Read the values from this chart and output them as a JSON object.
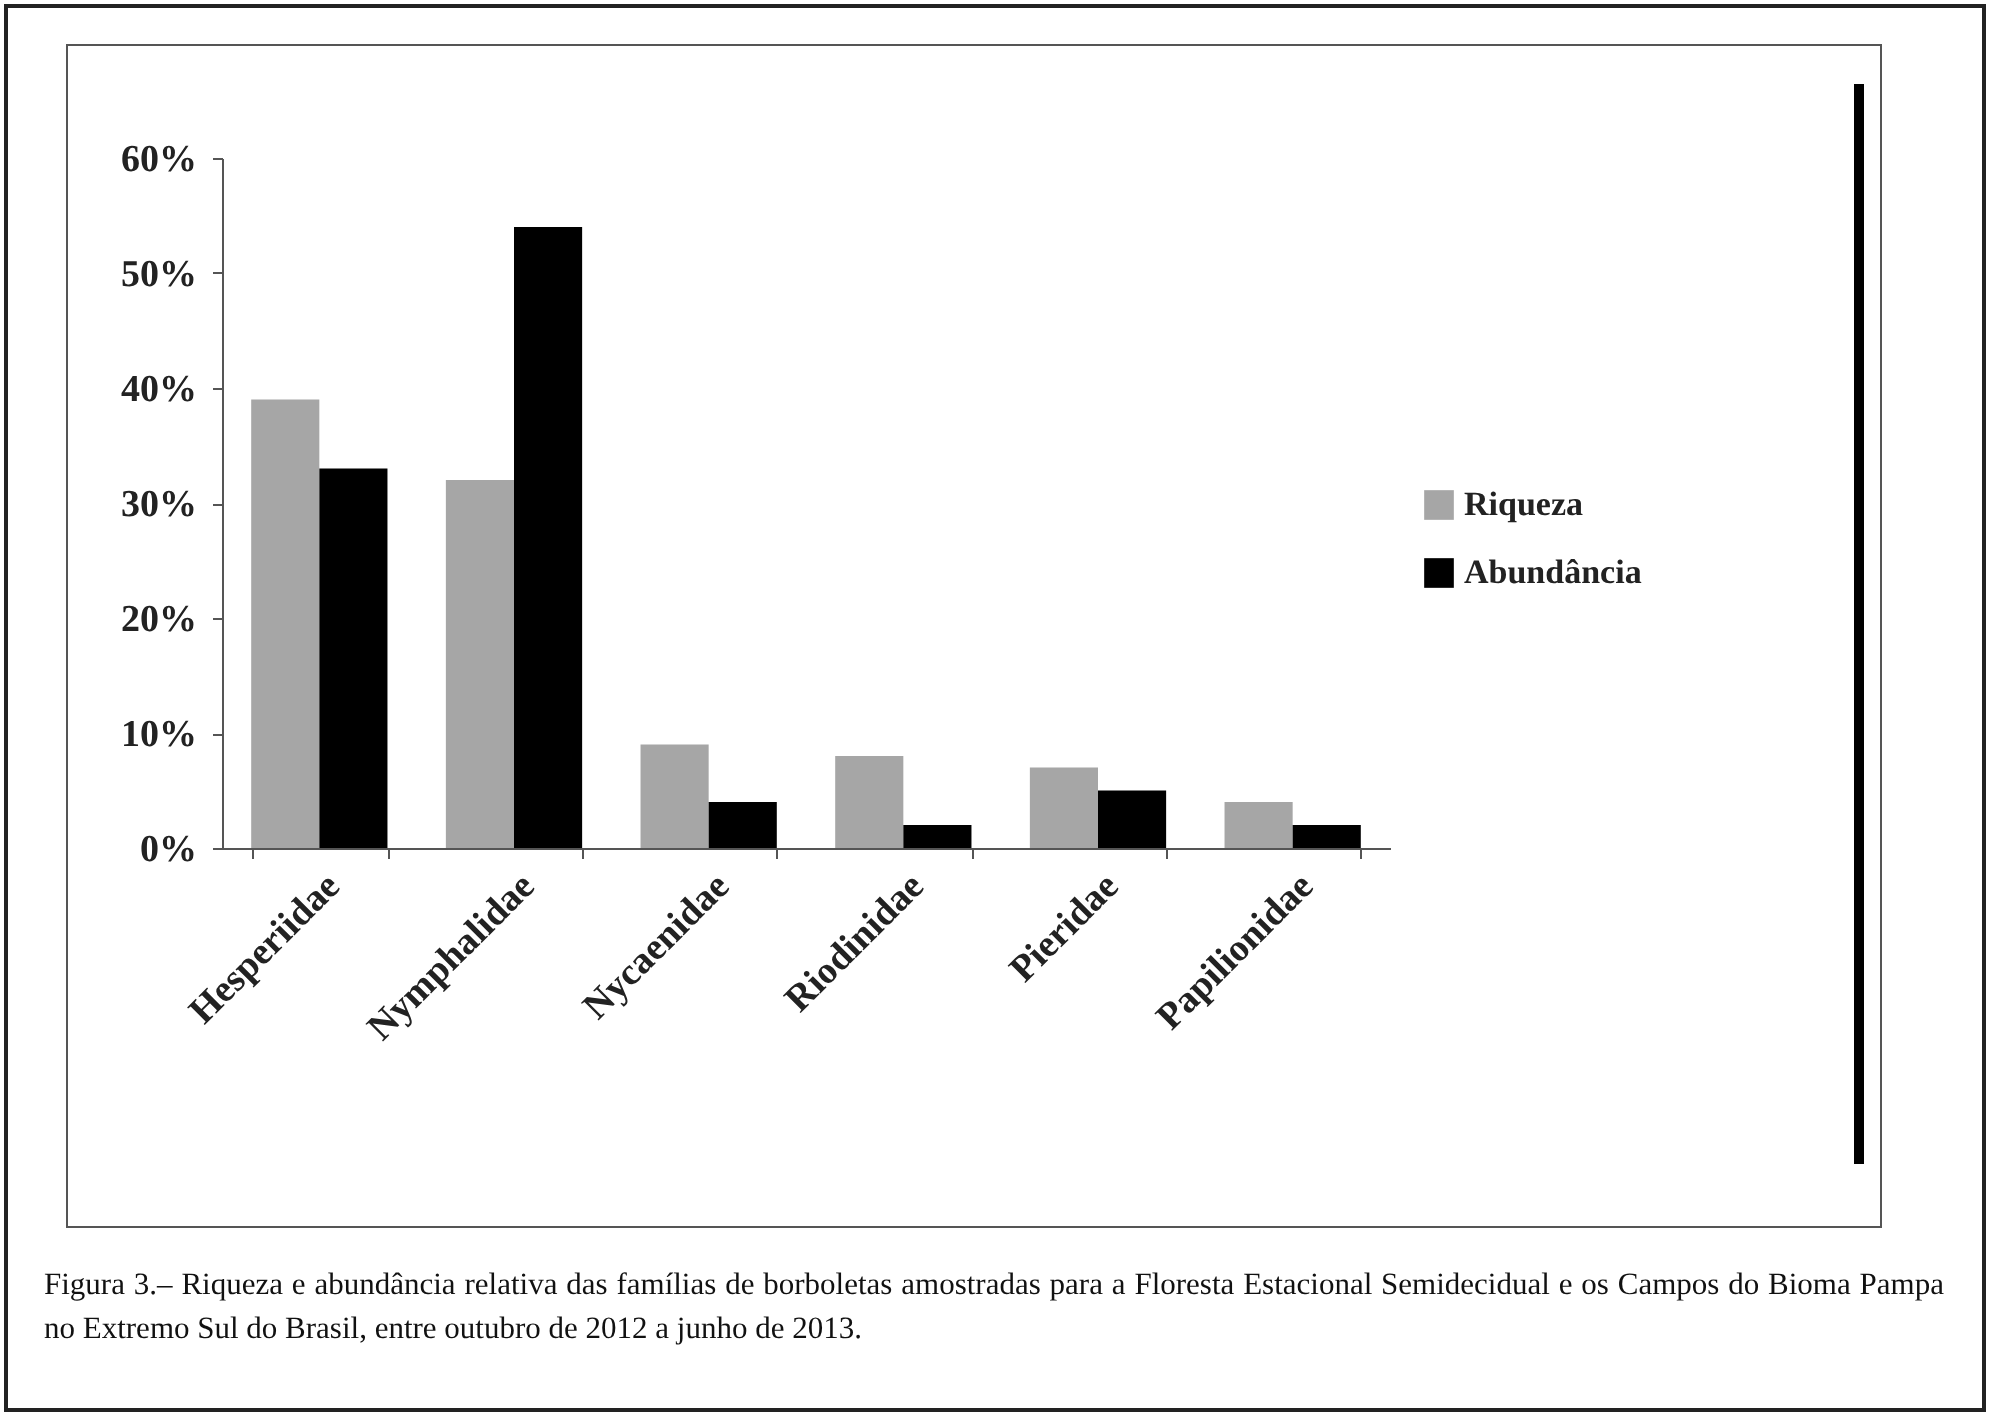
{
  "chart_data": {
    "type": "bar",
    "categories": [
      "Hesperiidae",
      "Nymphalidae",
      "Nycaenidae",
      "Riodinidae",
      "Pieridae",
      "Papilionidae"
    ],
    "series": [
      {
        "name": "Riqueza",
        "color": "#a6a6a6",
        "values": [
          39,
          32,
          9,
          8,
          7,
          4
        ]
      },
      {
        "name": "Abundância",
        "color": "#000000",
        "values": [
          33,
          54,
          4,
          2,
          5,
          2
        ]
      }
    ],
    "ylim": [
      0,
      60
    ],
    "yticks": [
      {
        "value": 0,
        "label": "0%"
      },
      {
        "value": 10,
        "label": "10%"
      },
      {
        "value": 20,
        "label": "20%"
      },
      {
        "value": 30,
        "label": "30%"
      },
      {
        "value": 40,
        "label": "40%"
      },
      {
        "value": 50,
        "label": "50%"
      },
      {
        "value": 60,
        "label": "60%"
      }
    ],
    "grid": false,
    "legend": "right",
    "annotations": [
      "Figura 3.– Riqueza e abundância relativa das famílias de borboletas amostradas para a Floresta Estacional Semidecidual e os Campos do Bioma Pampa no Extremo Sul do Brasil, entre outubro de 2012 a junho de 2013."
    ]
  }
}
